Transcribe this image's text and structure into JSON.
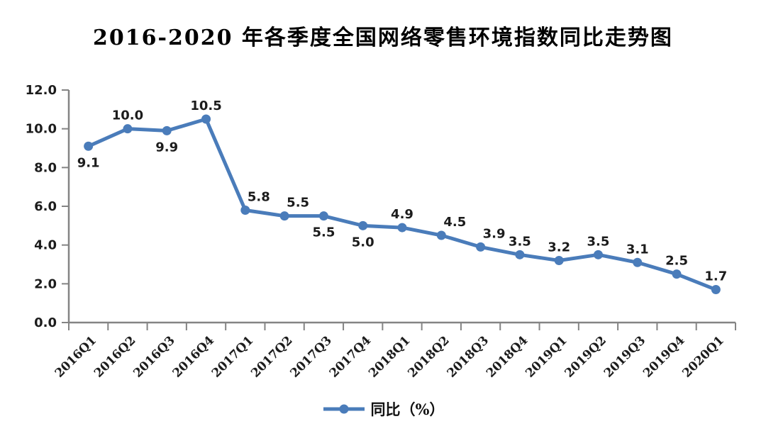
{
  "chart_data": {
    "type": "line",
    "title": "2016-2020 年各季度全国网络零售环境指数同比走势图",
    "categories": [
      "2016Q1",
      "2016Q2",
      "2016Q3",
      "2016Q4",
      "2017Q1",
      "2017Q2",
      "2017Q3",
      "2017Q4",
      "2018Q1",
      "2018Q2",
      "2018Q3",
      "2018Q4",
      "2019Q1",
      "2019Q2",
      "2019Q3",
      "2019Q4",
      "2020Q1"
    ],
    "series": [
      {
        "name": "同比（%）",
        "values": [
          9.1,
          10.0,
          9.9,
          10.5,
          5.8,
          5.5,
          5.5,
          5.0,
          4.9,
          4.5,
          3.9,
          3.5,
          3.2,
          3.5,
          3.1,
          2.5,
          1.7
        ]
      }
    ],
    "xlabel": "",
    "ylabel": "",
    "ylim": [
      0,
      12
    ],
    "ytick_step": 2,
    "ytick_labels": [
      "0.0",
      "2.0",
      "4.0",
      "6.0",
      "8.0",
      "10.0",
      "12.0"
    ],
    "grid": false,
    "legend_position": "bottom",
    "data_labels_shown": true,
    "label_positions": [
      "below",
      "above",
      "below",
      "above",
      "above-right",
      "above-right",
      "below",
      "below",
      "above",
      "above-right",
      "above-right",
      "above",
      "above",
      "above",
      "above",
      "above",
      "above"
    ],
    "line_color": "#4a7cba",
    "marker_color": "#4a7cba",
    "axis_color": "#848484",
    "text_color": "#1c1c1c",
    "background_color": "#ffffff"
  }
}
